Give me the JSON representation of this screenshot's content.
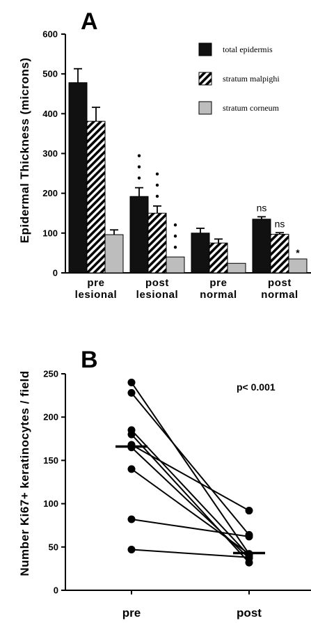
{
  "chart_data": [
    {
      "panel": "A",
      "type": "bar",
      "ylabel": "Epidermal Thickness (microns)",
      "ylim": [
        0,
        600
      ],
      "yticks": [
        "0",
        "100",
        "200",
        "300",
        "400",
        "500",
        "600"
      ],
      "categories": [
        {
          "line1": "pre",
          "line2": "lesional"
        },
        {
          "line1": "post",
          "line2": "lesional"
        },
        {
          "line1": "pre",
          "line2": "normal"
        },
        {
          "line1": "post",
          "line2": "normal"
        }
      ],
      "series": [
        {
          "name": "total epidermis",
          "fill": "solid",
          "values": [
            478,
            192,
            100,
            135
          ],
          "errors": [
            35,
            22,
            12,
            6
          ]
        },
        {
          "name": "stratum malpighi",
          "fill": "hatch",
          "values": [
            381,
            150,
            75,
            97
          ],
          "errors": [
            35,
            18,
            10,
            4
          ]
        },
        {
          "name": "stratum corneum",
          "fill": "gray",
          "values": [
            96,
            40,
            24,
            35
          ],
          "errors": [
            12,
            0,
            0,
            0
          ]
        }
      ],
      "annotations": [
        {
          "cat": 1,
          "series": 0,
          "text": "•••"
        },
        {
          "cat": 1,
          "series": 1,
          "text": "•••"
        },
        {
          "cat": 1,
          "series": 2,
          "text": "•••"
        },
        {
          "cat": 3,
          "series": 0,
          "text": "ns"
        },
        {
          "cat": 3,
          "series": 1,
          "text": "ns"
        },
        {
          "cat": 3,
          "series": 2,
          "text": "*"
        }
      ],
      "legend_position": "top-right"
    },
    {
      "panel": "B",
      "type": "line",
      "ylabel": "Number Ki67+ keratinocytes / field",
      "ylim": [
        0,
        250
      ],
      "yticks": [
        "0",
        "50",
        "100",
        "150",
        "200",
        "250"
      ],
      "categories": [
        "pre",
        "post"
      ],
      "pairs": [
        [
          240,
          42
        ],
        [
          228,
          64
        ],
        [
          185,
          40
        ],
        [
          180,
          32
        ],
        [
          168,
          92
        ],
        [
          165,
          37
        ],
        [
          140,
          42
        ],
        [
          82,
          62
        ],
        [
          47,
          38
        ]
      ],
      "medians": [
        166,
        43
      ],
      "annotation": "p<  0.001"
    }
  ]
}
